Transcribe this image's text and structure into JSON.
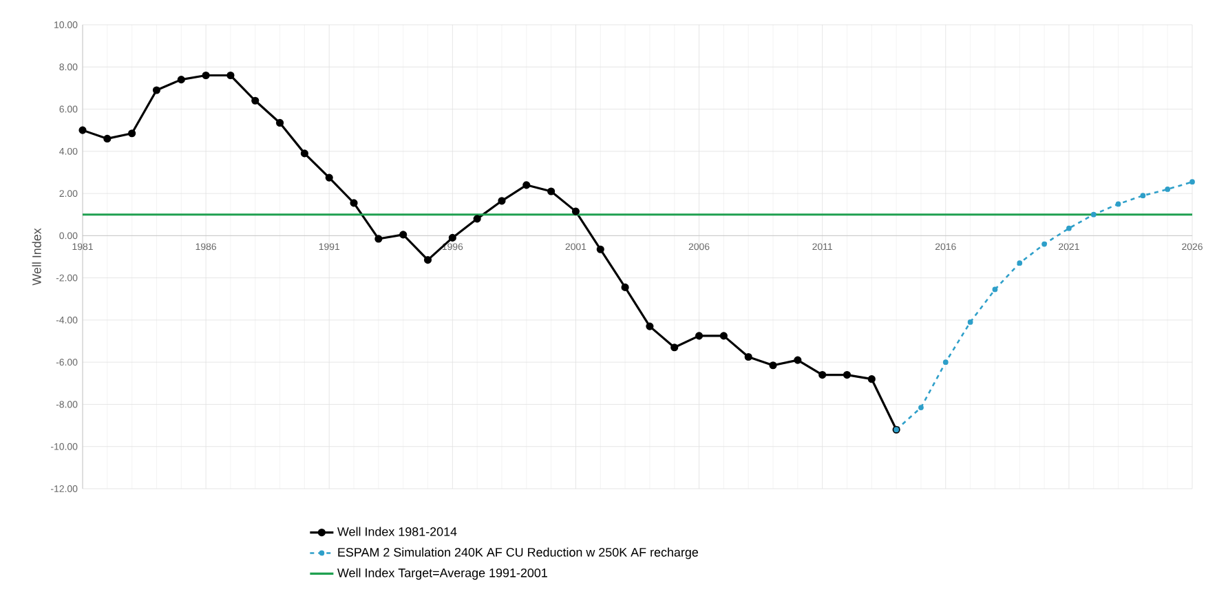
{
  "chart_data": {
    "type": "line",
    "ylabel": "Well Index",
    "x": [
      1981,
      1982,
      1983,
      1984,
      1985,
      1986,
      1987,
      1988,
      1989,
      1990,
      1991,
      1992,
      1993,
      1994,
      1995,
      1996,
      1997,
      1998,
      1999,
      2000,
      2001,
      2002,
      2003,
      2004,
      2005,
      2006,
      2007,
      2008,
      2009,
      2010,
      2011,
      2012,
      2013,
      2014
    ],
    "series": [
      {
        "name": "Well Index 1981-2014",
        "color": "#000000",
        "marker": "circle",
        "line_style": "solid",
        "values": [
          5.0,
          4.6,
          4.85,
          6.9,
          7.4,
          7.6,
          7.6,
          6.4,
          5.35,
          3.9,
          2.75,
          1.55,
          -0.15,
          0.05,
          -1.15,
          -0.1,
          0.8,
          1.65,
          2.4,
          2.1,
          1.15,
          -0.65,
          -2.45,
          -4.3,
          -5.3,
          -4.75,
          -4.75,
          -5.75,
          -6.15,
          -5.9,
          -6.6,
          -6.6,
          -6.8,
          -9.2
        ]
      },
      {
        "name": "ESPAM 2 Simulation 240K AF CU Reduction w 250K AF recharge",
        "color": "#2e9fc9",
        "marker": "circle",
        "line_style": "dashed",
        "x": [
          2014,
          2015,
          2016,
          2017,
          2018,
          2019,
          2020,
          2021,
          2022,
          2023,
          2024,
          2025,
          2026
        ],
        "values": [
          -9.2,
          -8.15,
          -6.0,
          -4.1,
          -2.55,
          -1.3,
          -0.4,
          0.35,
          1.0,
          1.5,
          1.9,
          2.2,
          2.55
        ]
      }
    ],
    "ref_lines": [
      {
        "axis": "y",
        "value": 1.0,
        "label": "Well Index Target=Average 1991-2001",
        "color": "#1fa050"
      }
    ],
    "xlim": [
      1981,
      2026
    ],
    "xticks": [
      1981,
      1986,
      1991,
      1996,
      2001,
      2006,
      2011,
      2016,
      2021,
      2026
    ],
    "ylim": [
      -12,
      10
    ],
    "yticks": [
      {
        "value": -12,
        "label": "-12.00"
      },
      {
        "value": -10,
        "label": "-10.00"
      },
      {
        "value": -8,
        "label": "-8.00"
      },
      {
        "value": -6,
        "label": "-6.00"
      },
      {
        "value": -4,
        "label": "-4.00"
      },
      {
        "value": -2,
        "label": "-2.00"
      },
      {
        "value": 0,
        "label": "0.00"
      },
      {
        "value": 2,
        "label": "2.00"
      },
      {
        "value": 4,
        "label": "4.00"
      },
      {
        "value": 6,
        "label": "6.00"
      },
      {
        "value": 8,
        "label": "8.00"
      },
      {
        "value": 10,
        "label": "10.00"
      }
    ],
    "grid": true,
    "legend": "bottom"
  }
}
